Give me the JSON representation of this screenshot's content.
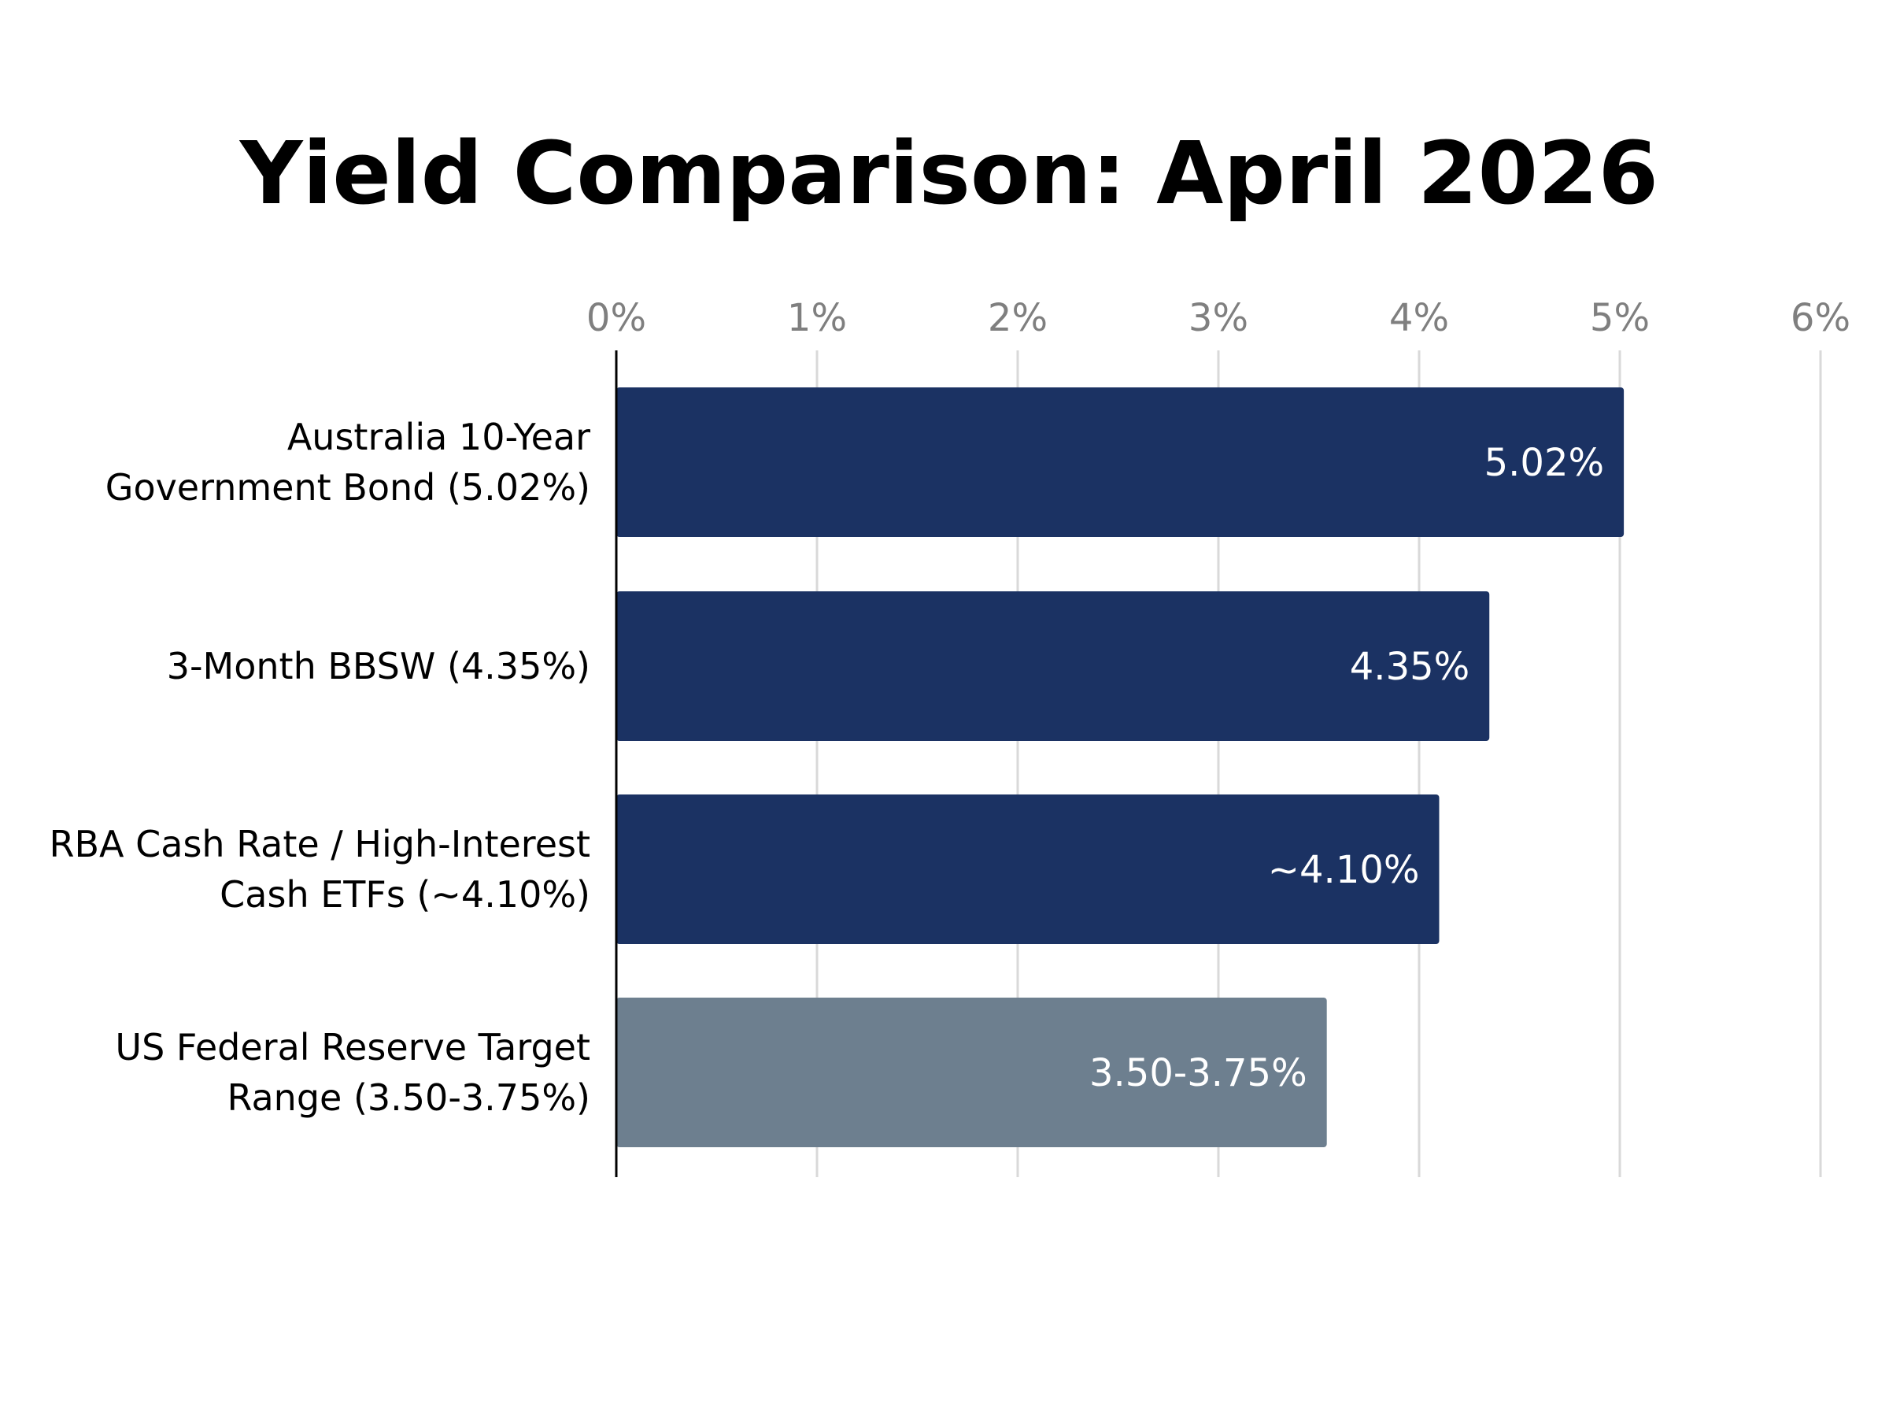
{
  "chart_data": {
    "type": "bar",
    "orientation": "horizontal",
    "title": "Yield Comparison: April 2026",
    "xlim": [
      0,
      6
    ],
    "x_ticks": [
      0,
      1,
      2,
      3,
      4,
      5,
      6
    ],
    "x_tick_labels": [
      "0%",
      "1%",
      "2%",
      "3%",
      "4%",
      "5%",
      "6%"
    ],
    "x_axis_position": "top",
    "grid": "vertical",
    "categories": [
      [
        "Australia 10-Year",
        "Government Bond (5.02%)"
      ],
      [
        "3-Month BBSW (4.35%)"
      ],
      [
        "RBA Cash Rate / High-Interest",
        "Cash ETFs (~4.10%)"
      ],
      [
        "US Federal Reserve Target",
        "Range (3.50-3.75%)"
      ]
    ],
    "values": [
      5.02,
      4.35,
      4.1,
      3.54
    ],
    "data_labels": [
      "5.02%",
      "4.35%",
      "~4.10%",
      "3.50-3.75%"
    ],
    "colors": [
      "#1b3263",
      "#1b3263",
      "#1b3263",
      "#6d7f8f"
    ],
    "grid_color": "#d9d9d9",
    "tick_label_color": "#7f7f7f",
    "axis_line_color": "#000000",
    "data_label_color": "#ffffff"
  }
}
